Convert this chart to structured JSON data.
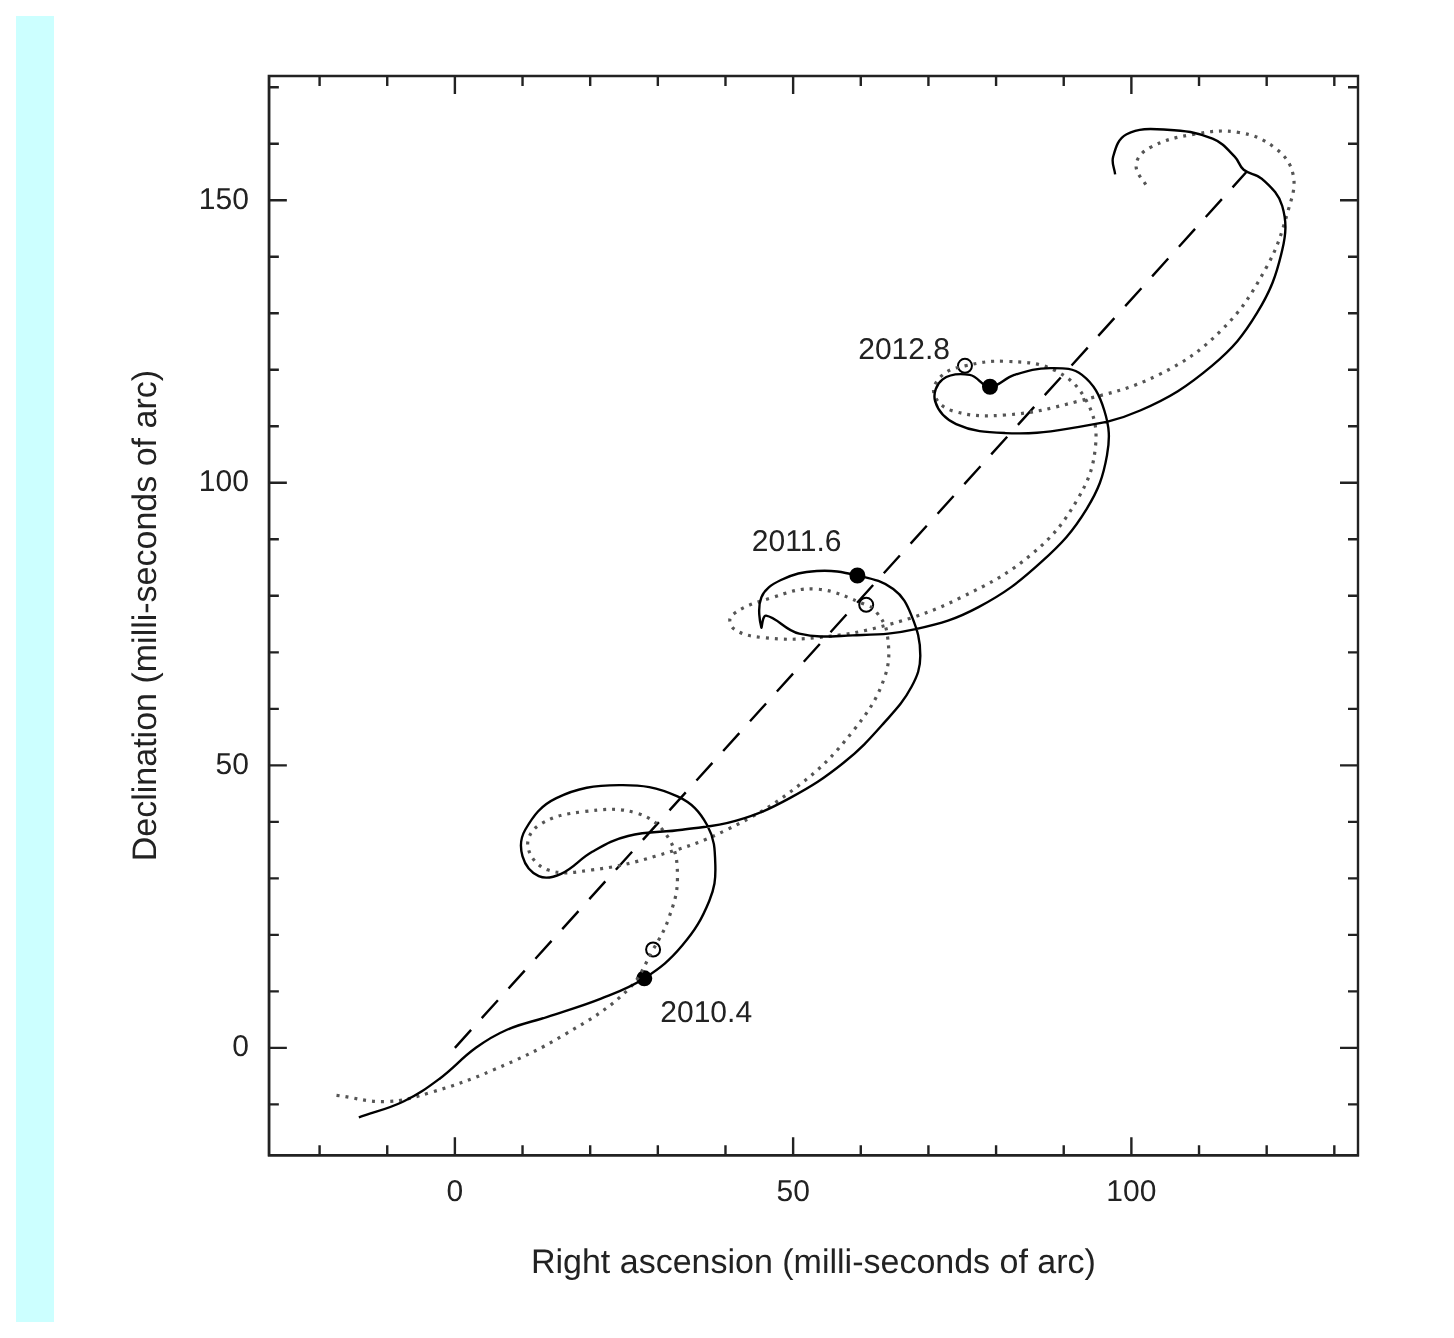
{
  "chart_data": {
    "type": "line",
    "xlabel": "Right ascension (milli-seconds of arc)",
    "ylabel": "Declination (milli-seconds of arc)",
    "xlim": [
      -27.5,
      133.5
    ],
    "ylim": [
      -19,
      172
    ],
    "xticks": [
      {
        "value": -20,
        "label": null
      },
      {
        "value": -10,
        "label": null
      },
      0,
      {
        "value": 10,
        "label": null
      },
      {
        "value": 20,
        "label": null
      },
      {
        "value": 30,
        "label": null
      },
      {
        "value": 40,
        "label": null
      },
      50,
      {
        "value": 60,
        "label": null
      },
      {
        "value": 70,
        "label": null
      },
      {
        "value": 80,
        "label": null
      },
      {
        "value": 90,
        "label": null
      },
      100,
      {
        "value": 110,
        "label": null
      },
      {
        "value": 120,
        "label": null
      },
      {
        "value": 130,
        "label": null
      }
    ],
    "yticks": [
      {
        "value": -10,
        "label": null
      },
      0,
      {
        "value": 10,
        "label": null
      },
      {
        "value": 20,
        "label": null
      },
      {
        "value": 30,
        "label": null
      },
      {
        "value": 40,
        "label": null
      },
      50,
      {
        "value": 60,
        "label": null
      },
      {
        "value": 70,
        "label": null
      },
      {
        "value": 80,
        "label": null
      },
      {
        "value": 90,
        "label": null
      },
      100,
      {
        "value": 110,
        "label": null
      },
      {
        "value": 120,
        "label": null
      },
      {
        "value": 130,
        "label": null
      },
      {
        "value": 140,
        "label": null
      },
      150,
      {
        "value": 160,
        "label": null
      },
      {
        "value": 170,
        "label": null
      }
    ],
    "grid": false,
    "legend": false,
    "series": [
      {
        "color": "#000000",
        "line_style": "solid",
        "marker": "none",
        "x": [
          -14.2,
          -7.6,
          -2.3,
          3.1,
          7.7,
          13.7,
          21.6,
          28,
          33.6,
          37.6,
          38.5,
          37.3,
          32.9,
          24.3,
          15,
          10.4,
          10,
          12.4,
          15.7,
          20.3,
          25.6,
          33.6,
          41.6,
          49.5,
          57.5,
          63.5,
          67.5,
          68.8,
          67.5,
          64.8,
          59.5,
          53.5,
          48.2,
          45.3,
          45.3,
          46,
          50.9,
          58.8,
          68.1,
          77.4,
          86.7,
          93.4,
          96.4,
          96,
          92.7,
          88,
          82.7,
          79.1,
          76.1,
          72.1,
          71,
          74.1,
          81.4,
          90.7,
          101.3,
          111.9,
          118.6,
          122.3,
          122.3,
          119.3,
          116.6,
          115.3,
          112,
          105.3,
          99.3,
          97.3,
          97.6
        ],
        "values": [
          -12.3,
          -9.5,
          -5.5,
          0,
          3.2,
          5.5,
          8.7,
          12.3,
          18.1,
          26,
          32.3,
          39.4,
          44.5,
          46.5,
          44.2,
          38.6,
          33.9,
          30.4,
          30.8,
          34.7,
          37.5,
          38.6,
          40.2,
          44.2,
          50.5,
          57.6,
          63.9,
          69.4,
          76.5,
          81.2,
          83.6,
          84.4,
          82.8,
          79.7,
          74.4,
          76.5,
          73.3,
          73,
          74.1,
          78,
          86,
          95.4,
          104.9,
          112.8,
          119.1,
          120.3,
          119.1,
          117,
          119.1,
          118.3,
          114.4,
          110.4,
          108.8,
          109.6,
          112.8,
          120.7,
          130.1,
          141.2,
          149,
          153.8,
          155.4,
          157.7,
          160.9,
          162.5,
          161.7,
          157.7,
          154.6
        ]
      },
      {
        "color": "#555555",
        "line_style": "dotted",
        "marker": "none",
        "x": [
          -17.5,
          -10.2,
          -3.6,
          5.7,
          16.3,
          25.6,
          29.3,
          31.6,
          32.9,
          31.6,
          27,
          19,
          12.4,
          10.8,
          13.7,
          20.3,
          29.6,
          40.2,
          50.9,
          58.8,
          63.5,
          63.9,
          62.2,
          60.8,
          53.5,
          46.9,
          40.9,
          41.3,
          45.6,
          53.5,
          64.1,
          74.8,
          85.4,
          92,
          94.7,
          93.4,
          88.7,
          81.4,
          75.4,
          72.1,
          70.8,
          73.4,
          81.4,
          92,
          104,
          113.3,
          119.9,
          123.2,
          123.9,
          121.2,
          115.9,
          109.3,
          102.7,
          100.7,
          102.4
        ],
        "values": [
          -8.4,
          -9.5,
          -7.9,
          -3.9,
          2.4,
          10.3,
          17.4,
          22.9,
          30,
          37.1,
          41.5,
          41.8,
          39.4,
          35.5,
          31.5,
          31.5,
          33.9,
          38.6,
          46.5,
          56,
          65.5,
          73.3,
          77.3,
          78.4,
          81.2,
          79.7,
          76.5,
          74.1,
          72.6,
          72.6,
          74.9,
          79.7,
          87.5,
          97,
          106.5,
          114.4,
          119.9,
          121.5,
          120.7,
          119.1,
          115.9,
          112.8,
          112,
          114.4,
          119.1,
          127,
          138,
          148.3,
          154.6,
          159.3,
          162,
          161.7,
          159.3,
          156.2,
          152.2
        ]
      },
      {
        "color": "#000000",
        "line_style": "dashed",
        "marker": "none",
        "x": [
          0,
          117
        ],
        "values": [
          0,
          155
        ]
      },
      {
        "type": "scatter",
        "color": "#000000",
        "marker": "circle",
        "x": [
          28,
          59.5,
          79.1
        ],
        "values": [
          12.3,
          83.6,
          117
        ]
      },
      {
        "type": "scatter",
        "color": "#ffffff",
        "marker": "circle",
        "x": [
          29.3,
          60.8,
          75.4
        ],
        "values": [
          17.4,
          78.4,
          120.7
        ]
      }
    ],
    "annotations": [
      {
        "text": "2010.4",
        "x": 28,
        "y": 12.3
      },
      {
        "text": "2011.6",
        "x": 59.5,
        "y": 83.6
      },
      {
        "text": "2012.8",
        "x": 79.1,
        "y": 117
      }
    ]
  }
}
